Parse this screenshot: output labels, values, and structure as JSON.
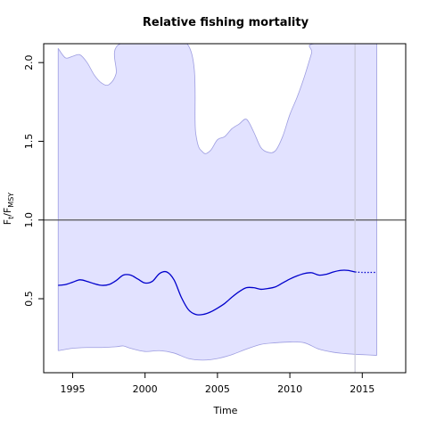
{
  "chart_data": {
    "type": "line",
    "title": "Relative fishing mortality",
    "xlabel": "Time",
    "ylabel": {
      "base": "F",
      "sub1": "t",
      "mid": "/F",
      "sub2": "MSY"
    },
    "xlim": [
      1993,
      2018
    ],
    "ylim": [
      0.03,
      2.12
    ],
    "xticks": [
      1995,
      2000,
      2005,
      2010,
      2015
    ],
    "yticks": [
      0.5,
      1.0,
      1.5,
      2.0
    ],
    "ytick_labels": [
      "0.5",
      "1.0",
      "1.5",
      "2.0"
    ],
    "reference_line": {
      "y": 1.0,
      "color": "#555555"
    },
    "vertical_line": {
      "x": 2014.5,
      "color": "#c8c8d8"
    },
    "colors": {
      "line": "#0000cc",
      "band_fill": "#e2e2ff",
      "band_stroke": "#9d9de0"
    },
    "series": [
      {
        "role": "estimate",
        "x": [
          1994,
          1994.5,
          1995,
          1995.5,
          1996,
          1996.5,
          1997,
          1997.5,
          1998,
          1998.5,
          1999,
          1999.5,
          2000,
          2000.5,
          2001,
          2001.5,
          2002,
          2002.5,
          2003,
          2003.5,
          2004,
          2004.5,
          2005,
          2005.5,
          2006,
          2006.5,
          2007,
          2007.5,
          2008,
          2008.5,
          2009,
          2009.5,
          2010,
          2010.5,
          2011,
          2011.5,
          2012,
          2012.5,
          2013,
          2013.5,
          2014,
          2014.5
        ],
        "values": [
          0.585,
          0.59,
          0.605,
          0.62,
          0.61,
          0.595,
          0.585,
          0.59,
          0.615,
          0.65,
          0.65,
          0.625,
          0.6,
          0.61,
          0.66,
          0.67,
          0.62,
          0.51,
          0.43,
          0.4,
          0.4,
          0.415,
          0.44,
          0.47,
          0.51,
          0.545,
          0.57,
          0.57,
          0.56,
          0.565,
          0.575,
          0.6,
          0.625,
          0.645,
          0.66,
          0.665,
          0.65,
          0.655,
          0.67,
          0.68,
          0.68,
          0.67
        ]
      },
      {
        "role": "prediction",
        "x": [
          2014.5,
          2015,
          2015.5,
          2016
        ],
        "values": [
          0.67,
          0.667,
          0.667,
          0.667
        ]
      },
      {
        "role": "upper_bound",
        "x": [
          1994,
          1994.5,
          1995,
          1995.5,
          1996,
          1996.5,
          1997,
          1997.5,
          1998,
          1998.3,
          2002.9,
          2003.5,
          2004,
          2004.5,
          2005,
          2005.5,
          2006,
          2006.5,
          2007,
          2007.5,
          2008,
          2008.5,
          2009,
          2009.5,
          2010,
          2010.5,
          2011,
          2011.5,
          2011.7,
          2016
        ],
        "values": [
          2.09,
          2.03,
          2.04,
          2.05,
          2.0,
          1.92,
          1.87,
          1.86,
          1.93,
          2.12,
          2.12,
          1.55,
          1.43,
          1.44,
          1.51,
          1.53,
          1.58,
          1.61,
          1.64,
          1.56,
          1.46,
          1.43,
          1.44,
          1.53,
          1.67,
          1.78,
          1.91,
          2.06,
          2.12,
          2.12
        ]
      },
      {
        "role": "lower_bound",
        "x": [
          1994,
          1995,
          1996,
          1997,
          1998,
          1998.5,
          1999,
          2000,
          2001,
          2002,
          2003,
          2004,
          2005,
          2006,
          2007,
          2008,
          2009,
          2010,
          2011,
          2012,
          2013,
          2014,
          2015,
          2016
        ],
        "values": [
          0.17,
          0.185,
          0.19,
          0.19,
          0.195,
          0.2,
          0.185,
          0.165,
          0.17,
          0.155,
          0.12,
          0.11,
          0.12,
          0.145,
          0.18,
          0.21,
          0.22,
          0.225,
          0.22,
          0.18,
          0.16,
          0.15,
          0.145,
          0.14
        ]
      }
    ]
  }
}
